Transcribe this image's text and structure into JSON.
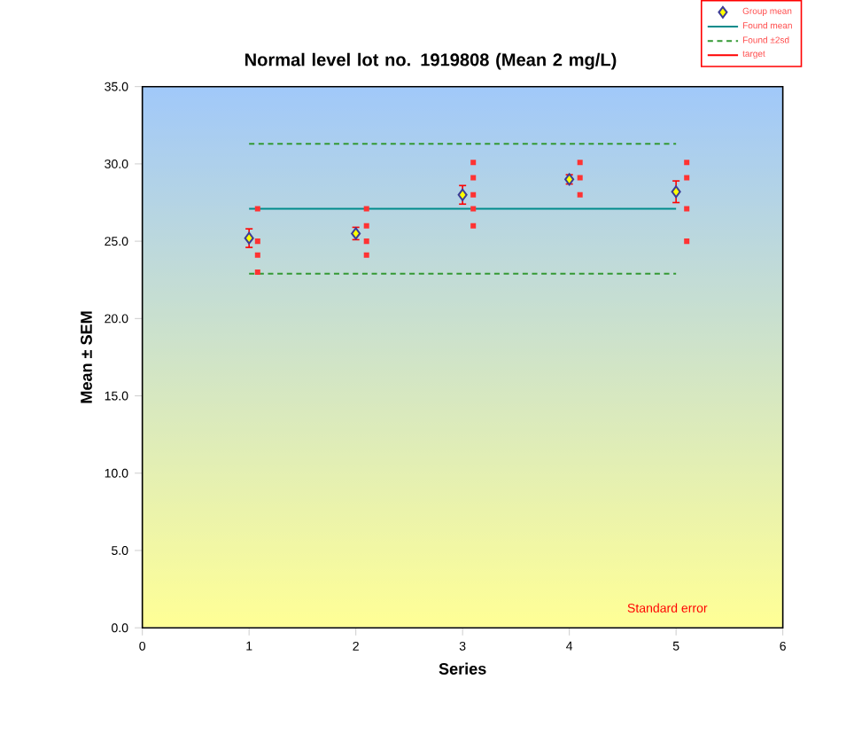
{
  "chart_data": {
    "type": "scatter",
    "title": "Normal level lot no. 1919808 (Mean 2 mg/L)",
    "xlabel": "Series",
    "ylabel": "Mean ± SEM",
    "xlim": [
      0,
      6
    ],
    "xticks": [
      0,
      1,
      2,
      3,
      4,
      5,
      6
    ],
    "ylim": [
      0,
      35
    ],
    "yticks": [
      {
        "value": 0,
        "label": "0.0"
      },
      {
        "value": 5,
        "label": "5.0"
      },
      {
        "value": 10,
        "label": "10.0"
      },
      {
        "value": 15,
        "label": "15.0"
      },
      {
        "value": 20,
        "label": "20.0"
      },
      {
        "value": 25,
        "label": "25.0"
      },
      {
        "value": 30,
        "label": "30.0"
      },
      {
        "value": 35,
        "label": "35.0"
      }
    ],
    "legend": "top right",
    "series": [
      {
        "name": "Group mean",
        "marker": "diamond",
        "color": "#ffff00",
        "x": [
          1,
          2,
          3,
          4,
          5
        ],
        "values": [
          25.2,
          25.5,
          28.0,
          29.0,
          28.2
        ],
        "errors": [
          0.6,
          0.4,
          0.6,
          0.3,
          0.7
        ]
      },
      {
        "name": "Found mean",
        "type": "line",
        "color": "#008b8b",
        "line_style": "solid",
        "x": [
          1,
          5
        ],
        "values": [
          27.1,
          27.1
        ]
      },
      {
        "name": "Found ±2sd",
        "type": "line",
        "color": "#339933",
        "line_style": "dashed",
        "x": [
          1,
          5
        ],
        "values": [
          31.3,
          31.3
        ]
      },
      {
        "type": "line",
        "color": "#339933",
        "line_style": "dashed",
        "x": [
          1,
          5
        ],
        "values": [
          22.9,
          22.9
        ]
      },
      {
        "name": "target",
        "type": "line",
        "color": "#ff0000",
        "line_style": "solid",
        "values": [
          null
        ]
      },
      {
        "marker": "square",
        "color": "#ff3333",
        "x": [
          1.08,
          1.08,
          1.08,
          1.08,
          2.1,
          2.1,
          2.1,
          2.1,
          3.1,
          3.1,
          3.1,
          3.1,
          3.1,
          4.1,
          4.1,
          4.1,
          5.1,
          5.1,
          5.1,
          5.1
        ],
        "values": [
          27.1,
          25.0,
          24.1,
          23.0,
          27.1,
          26.0,
          25.0,
          24.1,
          30.1,
          29.1,
          28.0,
          27.1,
          26.0,
          30.1,
          29.1,
          28.0,
          30.1,
          29.1,
          27.1,
          25.0
        ]
      }
    ],
    "annotations": [
      "Standard error"
    ]
  }
}
